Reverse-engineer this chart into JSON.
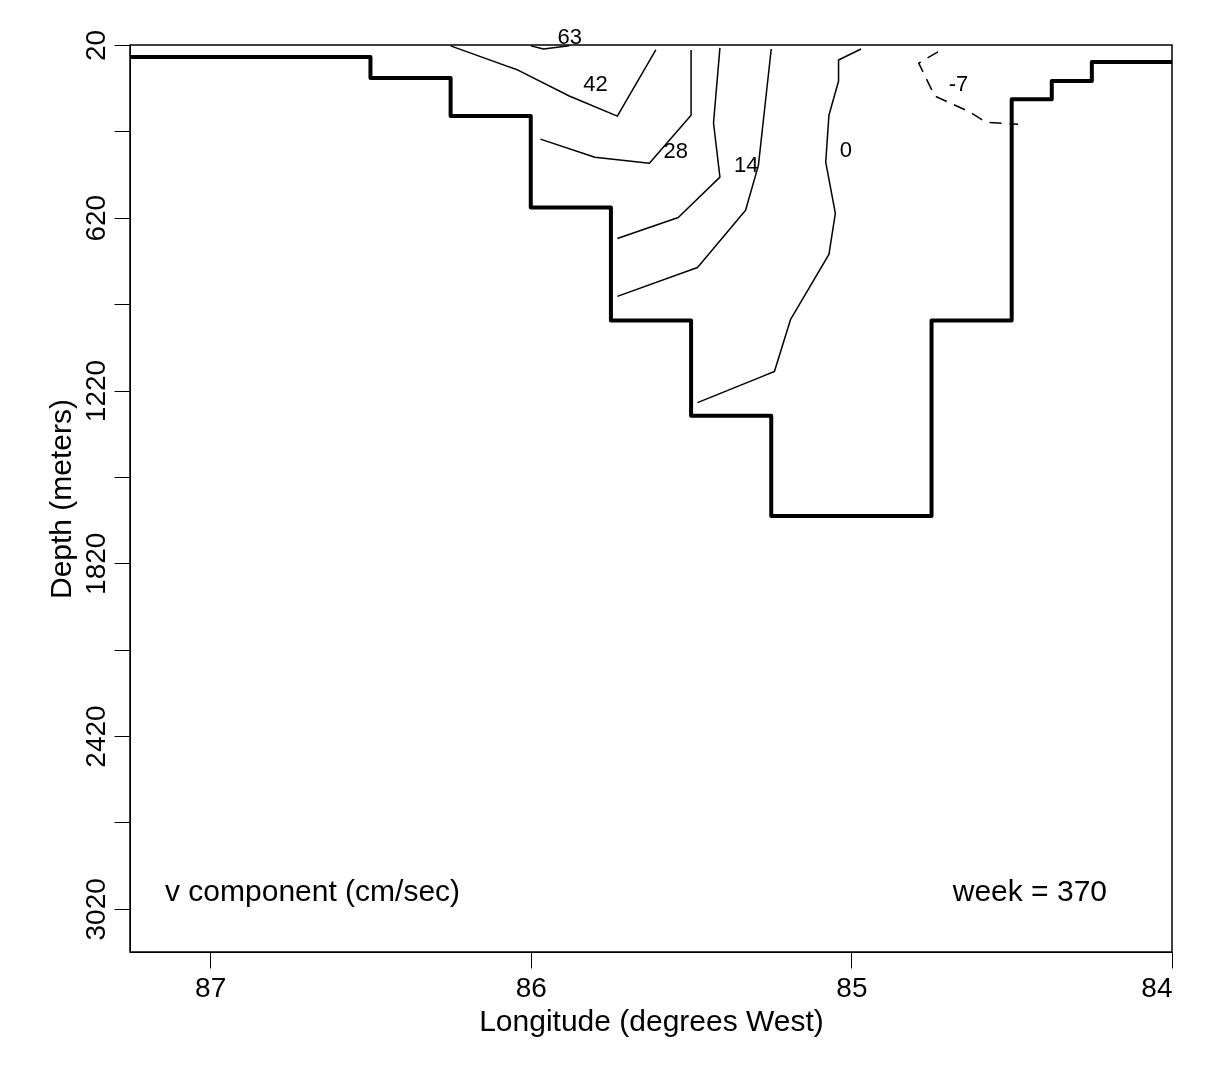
{
  "chart_data": {
    "type": "line",
    "xlabel": "Longitude (degrees West)",
    "ylabel": "Depth (meters)",
    "xlim": [
      87.25,
      84
    ],
    "xticks": [
      87,
      86,
      85,
      84
    ],
    "ylim": [
      3170,
      20
    ],
    "yticks": [
      20,
      {
        "value": 320,
        "label": null
      },
      620,
      {
        "value": 920,
        "label": null
      },
      1220,
      {
        "value": 1520,
        "label": null
      },
      1820,
      {
        "value": 2120,
        "label": null
      },
      2420,
      {
        "value": 2720,
        "label": null
      },
      3020
    ],
    "grid": false,
    "marker": "none",
    "series": [
      {
        "type": "step",
        "color": "#000000",
        "x": [
          87.25,
          86.5,
          86.25,
          86.0,
          85.75,
          85.5,
          85.25,
          84.75,
          84.5,
          84.375,
          84.25,
          84.0
        ],
        "values": [
          62,
          135,
          267,
          584,
          977,
          1308,
          1656,
          977,
          208,
          145,
          79,
          79
        ]
      },
      {
        "name": "63",
        "color": "#000000",
        "x": [
          86.0,
          85.96,
          85.88
        ],
        "values": [
          23,
          34,
          23
        ]
      },
      {
        "name": "42",
        "color": "#000000",
        "x": [
          86.25,
          86.04,
          85.88,
          85.73,
          85.61
        ],
        "values": [
          23,
          107,
          197,
          267,
          37
        ]
      },
      {
        "name": "28",
        "color": "#000000",
        "x": [
          85.97,
          85.8,
          85.63,
          85.5,
          85.5
        ],
        "values": [
          347,
          410,
          431,
          264,
          37
        ]
      },
      {
        "name": "14",
        "color": "#000000",
        "x": [
          85.73,
          85.54,
          85.41,
          85.43,
          85.41
        ],
        "values": [
          692,
          619,
          479,
          291,
          30
        ]
      },
      {
        "color": "#000000",
        "x": [
          85.73,
          85.48,
          85.33,
          85.29,
          85.25
        ],
        "values": [
          893,
          793,
          594,
          438,
          34
        ]
      },
      {
        "name": "0",
        "color": "#000000",
        "x": [
          84.97,
          85.04,
          85.04,
          85.07,
          85.08,
          85.05,
          85.07,
          85.19,
          85.24,
          85.48
        ],
        "values": [
          34,
          72,
          145,
          264,
          427,
          605,
          747,
          974,
          1154,
          1262
        ]
      },
      {
        "name": "-7",
        "color": "#000000",
        "line_style": "dashed",
        "x": [
          84.73,
          84.79,
          84.74,
          84.63,
          84.58,
          84.48
        ],
        "values": [
          44,
          83,
          197,
          253,
          288,
          295
        ]
      }
    ],
    "annotations": [
      "v component (cm/sec)",
      "week = 370"
    ]
  }
}
